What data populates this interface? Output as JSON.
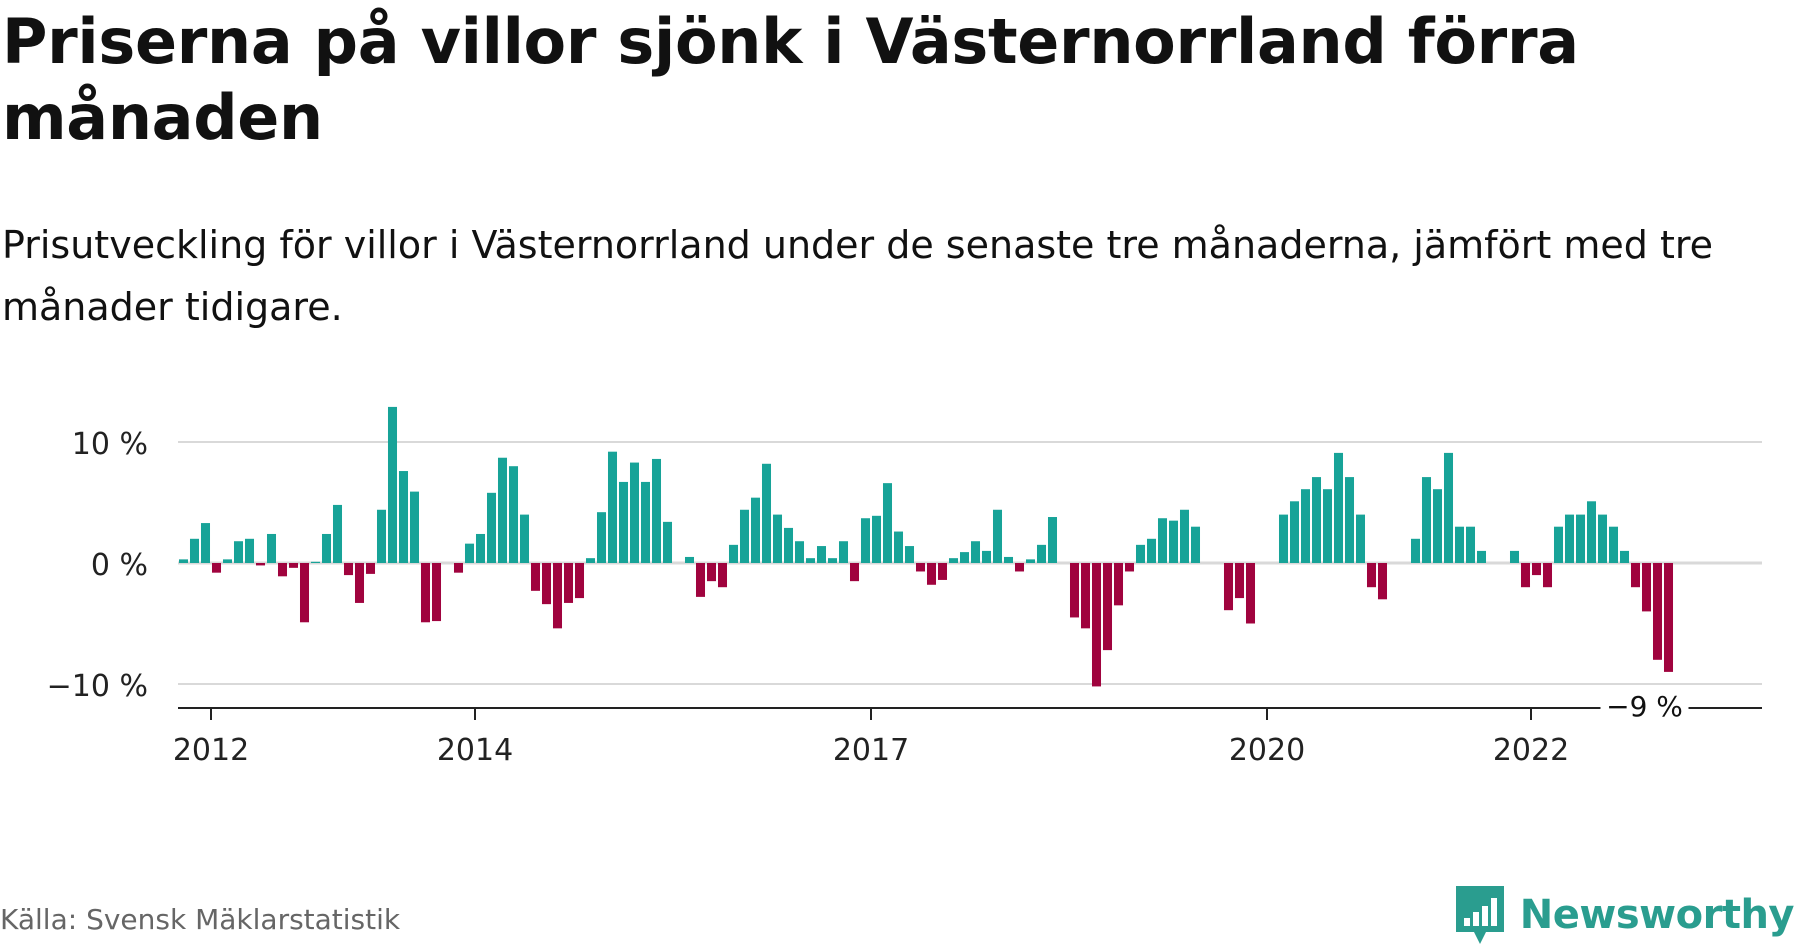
{
  "title": "Priserna på villor sjönk i Västernorrland förra månaden",
  "subtitle": "Prisutveckling för villor i Västernorrland under de senaste tre månaderna, jämfört med tre månader tidigare.",
  "source": "Källa: Svensk Mäklarstatistik",
  "brand": {
    "name": "Newsworthy",
    "logo_icon": "bar-chart-speech-bubble-icon",
    "color": "#2a9d8f"
  },
  "colors": {
    "positive": "#17a398",
    "negative": "#a0033e",
    "grid": "#d9d9d9",
    "axis": "#222222"
  },
  "chart_data": {
    "type": "bar",
    "x_start": "2011-10",
    "x_interval": "month",
    "xlim": [
      "2011-10",
      "2023-10"
    ],
    "ylim": [
      -12,
      13
    ],
    "y_unit": "%",
    "y_ticks": [
      {
        "value": 10,
        "label": "10 %"
      },
      {
        "value": 0,
        "label": "0 %"
      },
      {
        "value": -10,
        "label": "−10 %"
      }
    ],
    "x_ticks": [
      {
        "month": "2012-01",
        "label": "2012"
      },
      {
        "month": "2014-01",
        "label": "2014"
      },
      {
        "month": "2017-01",
        "label": "2017"
      },
      {
        "month": "2020-01",
        "label": "2020"
      },
      {
        "month": "2022-01",
        "label": "2022"
      }
    ],
    "grid": true,
    "last_value_label": "−9 %",
    "values": [
      0.3,
      2.0,
      3.3,
      -0.8,
      0.3,
      1.8,
      2.0,
      -0.2,
      2.4,
      -1.1,
      -0.4,
      -4.9,
      0.1,
      2.4,
      4.8,
      -1.0,
      -3.3,
      -0.9,
      4.4,
      12.9,
      7.6,
      5.9,
      -4.9,
      -4.8,
      0.0,
      -0.8,
      1.6,
      2.4,
      5.8,
      8.7,
      8.0,
      4.0,
      -2.3,
      -3.4,
      -5.4,
      -3.3,
      -2.9,
      0.4,
      4.2,
      9.2,
      6.7,
      8.3,
      6.7,
      8.6,
      3.4,
      0.0,
      0.5,
      -2.8,
      -1.5,
      -2.0,
      1.5,
      4.4,
      5.4,
      8.2,
      4.0,
      2.9,
      1.8,
      0.4,
      1.4,
      0.4,
      1.8,
      -1.5,
      3.7,
      3.9,
      6.6,
      2.6,
      1.4,
      -0.7,
      -1.8,
      -1.4,
      0.4,
      0.9,
      1.8,
      1.0,
      4.4,
      0.5,
      -0.7,
      0.3,
      1.5,
      3.8,
      0.0,
      -4.5,
      -5.4,
      -10.2,
      -7.2,
      -3.5,
      -0.7,
      1.5,
      2.0,
      3.7,
      3.5,
      4.4,
      3.0,
      0.0,
      0.0,
      -3.9,
      -2.9,
      -5.0,
      0.0,
      0.0,
      4.0,
      5.1,
      6.1,
      7.1,
      6.1,
      9.1,
      7.1,
      4.0,
      -2.0,
      -3.0,
      0.0,
      0.0,
      2.0,
      7.1,
      6.1,
      9.1,
      3.0,
      3.0,
      1.0,
      0.0,
      0.0,
      1.0,
      -2.0,
      -1.0,
      -2.0,
      3.0,
      4.0,
      4.0,
      5.1,
      4.0,
      3.0,
      1.0,
      -2.0,
      -4.0,
      -8.0,
      -9.0
    ]
  }
}
